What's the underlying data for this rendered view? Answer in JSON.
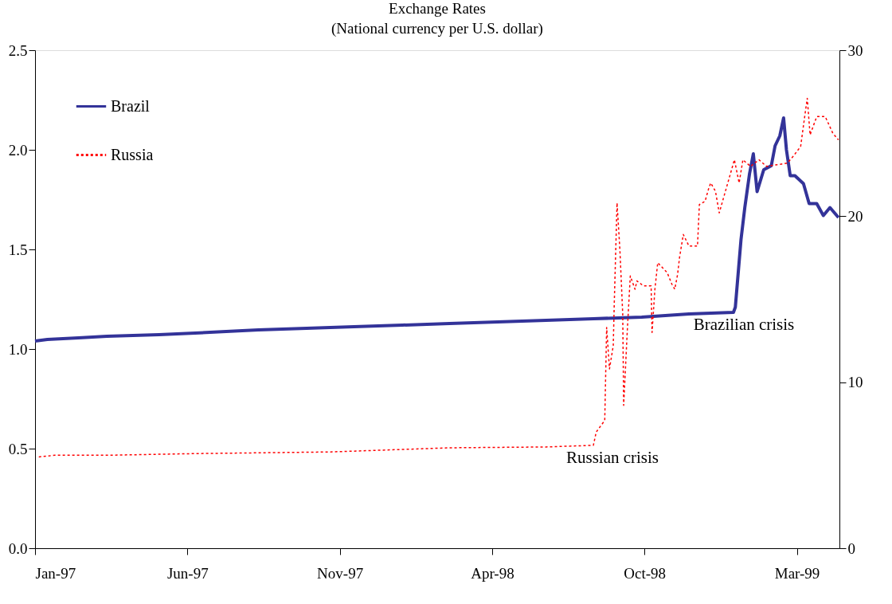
{
  "chart_data": {
    "type": "line",
    "title": "Exchange Rates",
    "subtitle": "(National currency per U.S. dollar)",
    "xlim": [
      "1997-01-01",
      "1999-05-01"
    ],
    "xticks": [
      {
        "value": "1997-01-01",
        "label": "Jan-97"
      },
      {
        "value": "1997-06-11",
        "label": "Jun-97"
      },
      {
        "value": "1997-11-19",
        "label": "Nov-97"
      },
      {
        "value": "1998-04-29",
        "label": "Apr-98"
      },
      {
        "value": "1998-10-07",
        "label": "Oct-98"
      },
      {
        "value": "1999-03-17",
        "label": "Mar-99"
      }
    ],
    "ylim": [
      0,
      2.5
    ],
    "yticks": [
      {
        "value": 0,
        "label": "0.0"
      },
      {
        "value": 0.5,
        "label": "0.5"
      },
      {
        "value": 1,
        "label": "1.0"
      },
      {
        "value": 1.5,
        "label": "1.5"
      },
      {
        "value": 2,
        "label": "2.0"
      },
      {
        "value": 2.5,
        "label": "2.5"
      }
    ],
    "y2lim": [
      0,
      30
    ],
    "y2ticks": [
      0,
      10,
      20,
      30
    ],
    "grid": false,
    "legend": "top left",
    "series": [
      {
        "name": "Brazil",
        "color": "#333399",
        "line_style": "solid",
        "axis": "y",
        "x": [
          "1997-01-01",
          "1997-01-14",
          "1997-02-16",
          "1997-03-18",
          "1997-05-12",
          "1997-06-19",
          "1997-07-22",
          "1997-08-25",
          "1997-10-15",
          "1997-12-04",
          "1998-01-24",
          "1998-03-15",
          "1998-05-05",
          "1998-06-25",
          "1998-08-14",
          "1998-10-04",
          "1998-11-23",
          "1999-01-09",
          "1999-01-11",
          "1999-01-17",
          "1999-01-21",
          "1999-01-26",
          "1999-01-30",
          "1999-02-03",
          "1999-02-10",
          "1999-02-18",
          "1999-02-22",
          "1999-02-27",
          "1999-03-03",
          "1999-03-06",
          "1999-03-10",
          "1999-03-15",
          "1999-03-24",
          "1999-03-30",
          "1999-04-07",
          "1999-04-14",
          "1999-04-21",
          "1999-04-30"
        ],
        "values": [
          1.04,
          1.048,
          1.056,
          1.064,
          1.072,
          1.08,
          1.088,
          1.096,
          1.104,
          1.112,
          1.12,
          1.128,
          1.136,
          1.144,
          1.152,
          1.16,
          1.176,
          1.184,
          1.21,
          1.55,
          1.71,
          1.88,
          1.98,
          1.79,
          1.9,
          1.92,
          2.02,
          2.07,
          2.16,
          2.0,
          1.87,
          1.87,
          1.83,
          1.73,
          1.73,
          1.67,
          1.71,
          1.66
        ]
      },
      {
        "name": "Russia",
        "color": "#ff0000",
        "line_style": "dotted",
        "axis": "y2",
        "x": [
          "1997-01-05",
          "1997-01-22",
          "1997-03-18",
          "1997-06-19",
          "1997-11-09",
          "1998-01-24",
          "1998-03-15",
          "1998-06-25",
          "1998-08-14",
          "1998-08-17",
          "1998-08-26",
          "1998-08-28",
          "1998-08-31",
          "1998-09-04",
          "1998-09-05",
          "1998-09-08",
          "1998-09-11",
          "1998-09-14",
          "1998-09-15",
          "1998-09-19",
          "1998-09-22",
          "1998-09-27",
          "1998-09-29",
          "1998-10-06",
          "1998-10-14",
          "1998-10-15",
          "1998-10-18",
          "1998-10-21",
          "1998-10-31",
          "1998-11-05",
          "1998-11-08",
          "1998-11-11",
          "1998-11-13",
          "1998-11-17",
          "1998-11-23",
          "1998-12-02",
          "1998-12-04",
          "1998-12-10",
          "1998-12-14",
          "1998-12-16",
          "1998-12-21",
          "1998-12-25",
          "1999-01-02",
          "1999-01-10",
          "1999-01-15",
          "1999-01-19",
          "1999-01-27",
          "1999-02-05",
          "1999-02-13",
          "1999-02-24",
          "1999-03-07",
          "1999-03-13",
          "1999-03-21",
          "1999-03-26",
          "1999-03-28",
          "1999-03-31",
          "1999-04-07",
          "1999-04-16",
          "1999-04-24",
          "1999-04-30"
        ],
        "values": [
          5.5,
          5.6,
          5.6,
          5.7,
          5.8,
          5.95,
          6.05,
          6.1,
          6.2,
          7.0,
          7.7,
          13.3,
          10.8,
          12.2,
          14.6,
          20.8,
          18.0,
          14.1,
          8.6,
          13.3,
          16.4,
          15.6,
          16.1,
          15.8,
          15.8,
          13.0,
          15.6,
          17.2,
          16.6,
          15.9,
          15.6,
          16.5,
          17.5,
          18.9,
          18.2,
          18.2,
          20.7,
          20.9,
          21.7,
          22.0,
          21.5,
          20.2,
          21.8,
          23.4,
          22.0,
          23.4,
          23.0,
          23.4,
          23.0,
          23.1,
          23.2,
          23.6,
          24.2,
          26.3,
          27.1,
          24.9,
          26.0,
          26.0,
          25.0,
          24.6
        ]
      }
    ],
    "annotations": [
      "Russian crisis",
      "Brazilian crisis"
    ]
  }
}
